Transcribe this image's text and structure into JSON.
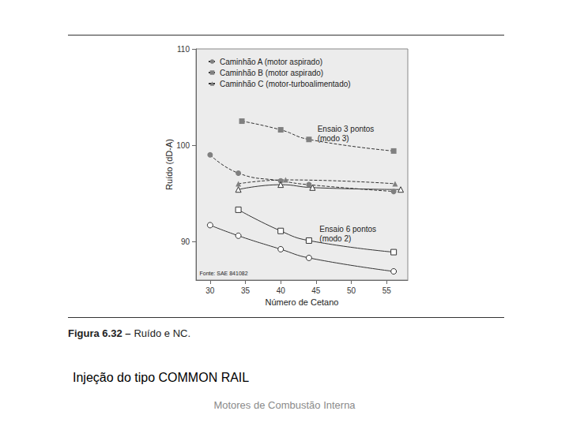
{
  "chart_data": {
    "type": "line",
    "y_label": "Ruído (dD-A)",
    "x_label": "Número de Cetano",
    "xlim": [
      28,
      58
    ],
    "xticks": [
      30,
      35,
      40,
      45,
      50,
      55
    ],
    "ylim": [
      86,
      110
    ],
    "yticks": [
      90,
      100,
      110
    ],
    "grid": false,
    "legend": "upper left",
    "series": [
      {
        "name": "Caminhão A (motor aspirado)",
        "color": "#808080",
        "marker": "circle",
        "line_style": "dashed",
        "x": [
          30,
          34,
          40,
          44,
          56
        ],
        "values": [
          99.0,
          97.1,
          96.3,
          95.9,
          95.2
        ]
      },
      {
        "name": "Caminhão B (motor aspirado)",
        "color": "#808080",
        "marker": "square",
        "line_style": "dashed",
        "x": [
          34.5,
          40,
          44,
          56
        ],
        "values": [
          102.5,
          101.6,
          100.6,
          99.4
        ]
      },
      {
        "name": "Caminhão C (motor-turboalimentado)",
        "color": "#808080",
        "marker": "triangle",
        "line_style": "dashed",
        "x": [
          34,
          40.7,
          56.2
        ],
        "values": [
          96.0,
          96.4,
          96.0
        ]
      },
      {
        "name": "Caminhão A (motor aspirado)",
        "color": "#333333",
        "marker": "circle-open",
        "line_style": "solid",
        "x": [
          30,
          34,
          40,
          44,
          56
        ],
        "values": [
          91.7,
          90.6,
          89.2,
          88.3,
          86.9
        ]
      },
      {
        "name": "Caminhão B (motor aspirado)",
        "color": "#333333",
        "marker": "square-open",
        "line_style": "solid",
        "x": [
          34,
          40,
          44,
          56
        ],
        "values": [
          93.3,
          91.1,
          90.1,
          88.9
        ]
      },
      {
        "name": "Caminhão C (motor-turboalimentado)",
        "color": "#333333",
        "marker": "triangle-open",
        "line_style": "solid",
        "x": [
          34,
          40,
          44.5,
          57
        ],
        "values": [
          95.4,
          95.9,
          95.6,
          95.4
        ]
      }
    ],
    "annotations": [
      {
        "text": "Ensaio 3 pontos\n(modo 3)",
        "x": 45.2,
        "y": 102.2
      },
      {
        "text": "Ensaio 6 pontos\n(modo 2)",
        "x": 45.5,
        "y": 91.8
      },
      {
        "text": "Fonte: SAE 841082",
        "x": 28.5,
        "y": 87.1
      }
    ]
  },
  "figure_label": "Figura 6.32 –",
  "figure_caption": "Ruído e NC.",
  "text": "Injeção do tipo COMMON RAIL",
  "footer": "Motores de Combustão Interna"
}
